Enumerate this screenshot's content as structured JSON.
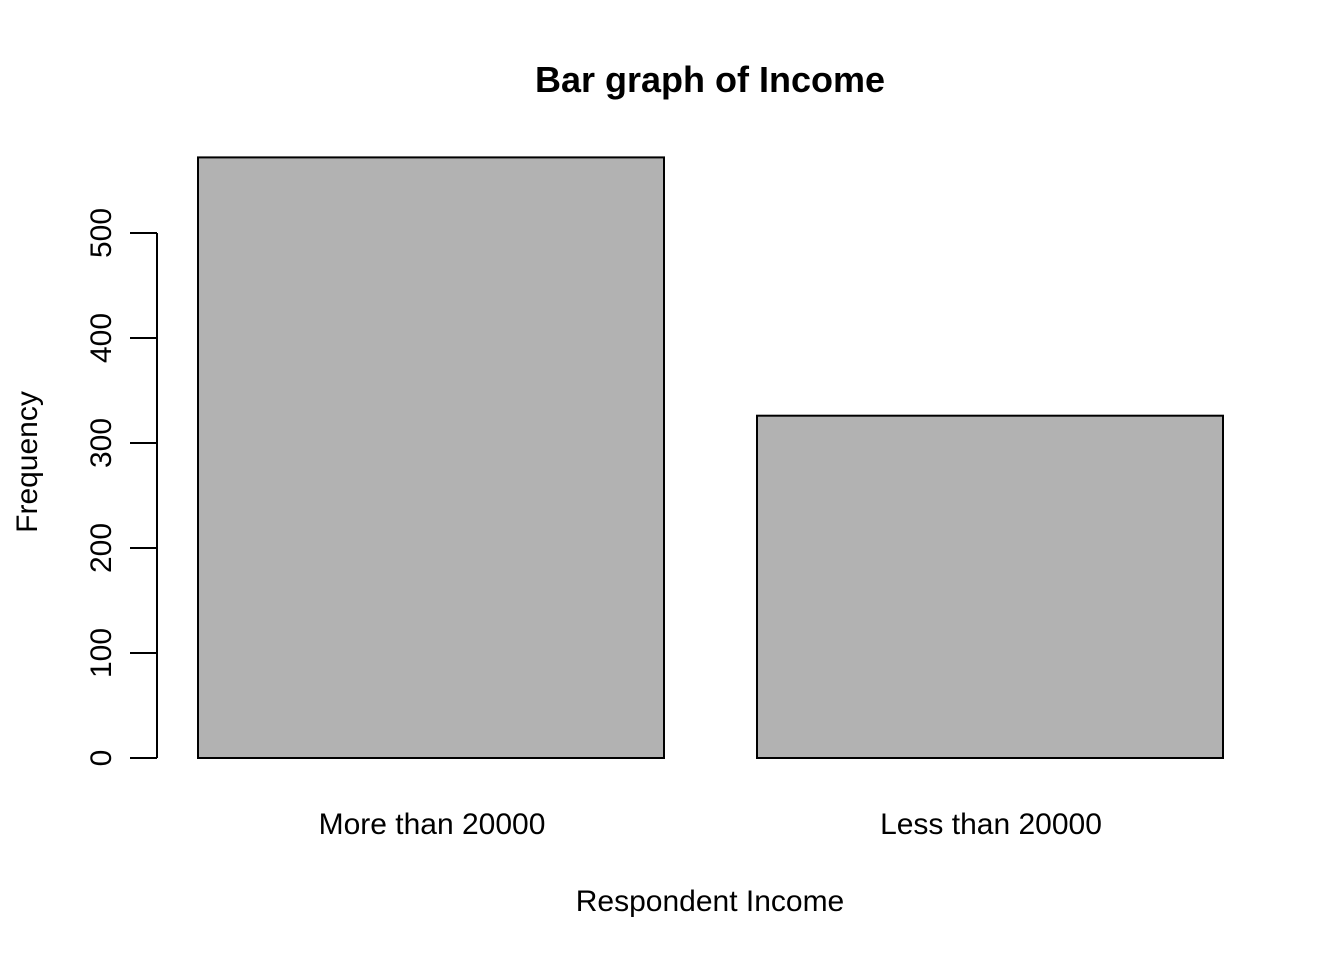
{
  "chart_data": {
    "type": "bar",
    "title": "Bar graph of Income",
    "xlabel": "Respondent Income",
    "ylabel": "Frequency",
    "categories": [
      "More than 20000",
      "Less than 20000"
    ],
    "values": [
      572,
      326
    ],
    "ylim": [
      0,
      572
    ],
    "yticks": [
      0,
      100,
      200,
      300,
      400,
      500
    ],
    "grid": false,
    "colors": {
      "bar_fill": "#b2b2b2",
      "bar_stroke": "#000000"
    }
  }
}
